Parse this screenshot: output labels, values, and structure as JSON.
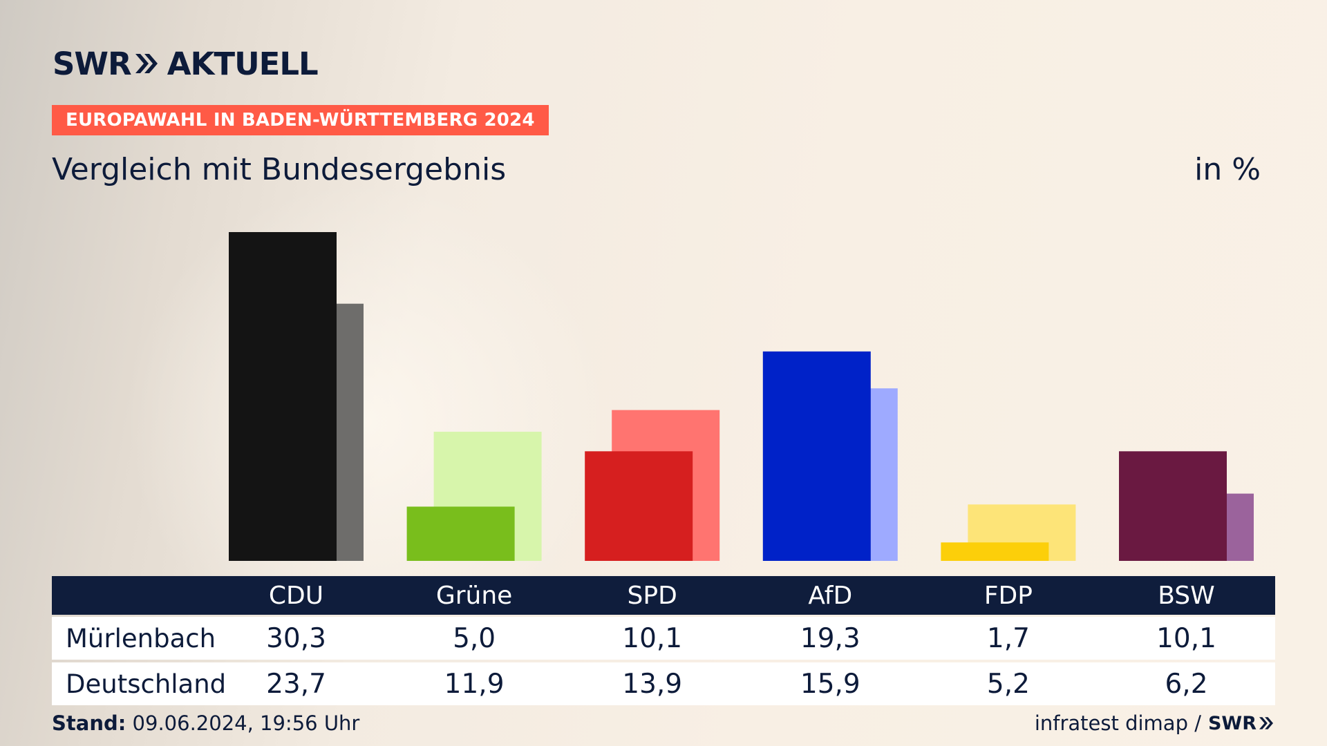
{
  "brand": {
    "logo_left": "SWR",
    "logo_right": "AKTUELL",
    "footer_logo": "SWR"
  },
  "badge": "EUROPAWAHL IN BADEN-WÜRTTEMBERG 2024",
  "subtitle": "Vergleich mit Bundesergebnis",
  "unit": "in %",
  "table": {
    "rows": [
      {
        "label": "Mürlenbach",
        "values": [
          "30,3",
          "5,0",
          "10,1",
          "19,3",
          "1,7",
          "10,1"
        ]
      },
      {
        "label": "Deutschland",
        "values": [
          "23,7",
          "11,9",
          "13,9",
          "15,9",
          "5,2",
          "6,2"
        ]
      }
    ]
  },
  "footer": {
    "stand_label": "Stand:",
    "stand_value": "09.06.2024, 19:56 Uhr",
    "source": "infratest dimap /"
  },
  "chart_data": {
    "type": "bar",
    "categories": [
      "CDU",
      "Grüne",
      "SPD",
      "AfD",
      "FDP",
      "BSW"
    ],
    "series": [
      {
        "name": "Mürlenbach",
        "values": [
          30.3,
          5.0,
          10.1,
          19.3,
          1.7,
          10.1
        ]
      },
      {
        "name": "Deutschland",
        "values": [
          23.7,
          11.9,
          13.9,
          15.9,
          5.2,
          6.2
        ]
      }
    ],
    "colors": {
      "primary": [
        "#141414",
        "#79be1c",
        "#d61f1f",
        "#0022c8",
        "#fccf0a",
        "#6a1941"
      ],
      "secondary": [
        "#6e6d6b",
        "#d7f5ab",
        "#ff7470",
        "#9eaaff",
        "#fde478",
        "#9b639c"
      ]
    },
    "ylim": [
      0,
      30.3
    ],
    "grid": false
  }
}
